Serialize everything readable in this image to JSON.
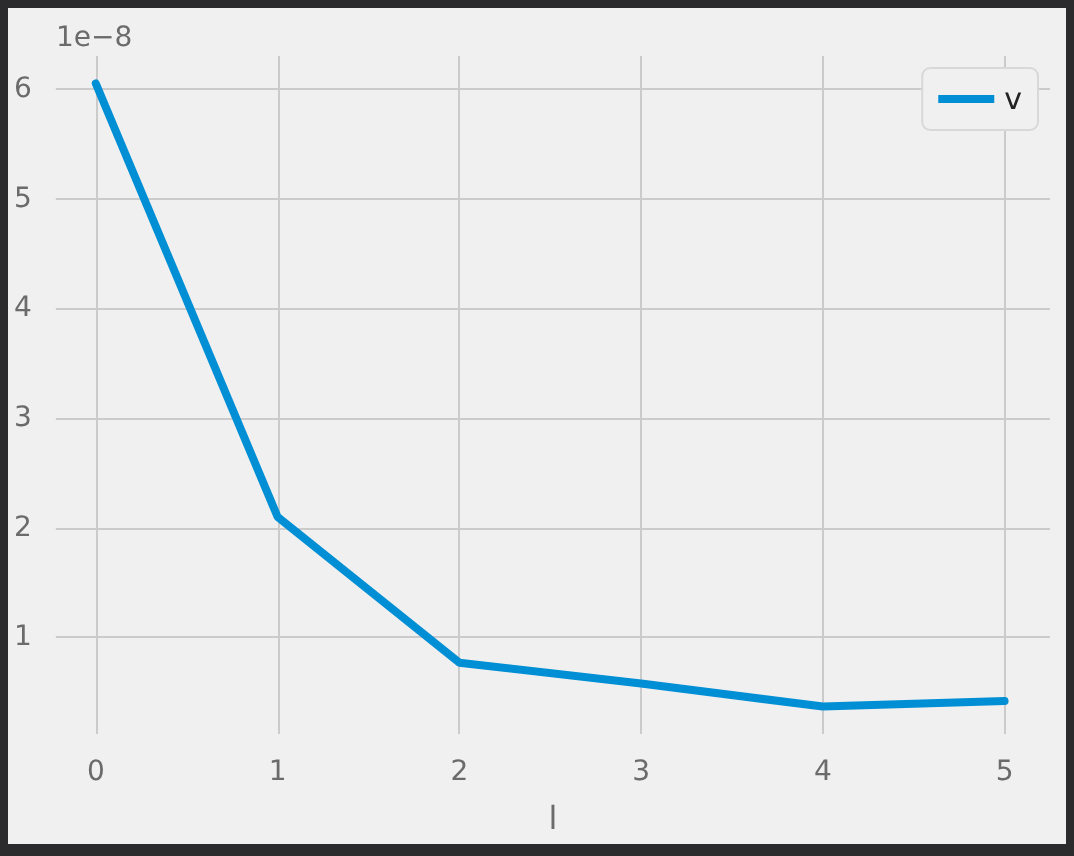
{
  "chart_data": {
    "type": "line",
    "xlabel": "l",
    "annotations": [
      "1e−8"
    ],
    "x": [
      0,
      1,
      2,
      3,
      4,
      5
    ],
    "series": [
      {
        "name": "v",
        "color": "#008fd5",
        "values": [
          6.05,
          2.1,
          0.77,
          0.58,
          0.37,
          0.42
        ]
      }
    ],
    "xlim": [
      -0.22,
      5.25
    ],
    "xticks": [
      0,
      1,
      2,
      3,
      4,
      5
    ],
    "ylim": [
      0.12,
      6.3
    ],
    "yticks": [
      1,
      2,
      3,
      4,
      5,
      6
    ],
    "grid": true,
    "legend": "top right",
    "marker": "none",
    "line_style": "solid"
  }
}
